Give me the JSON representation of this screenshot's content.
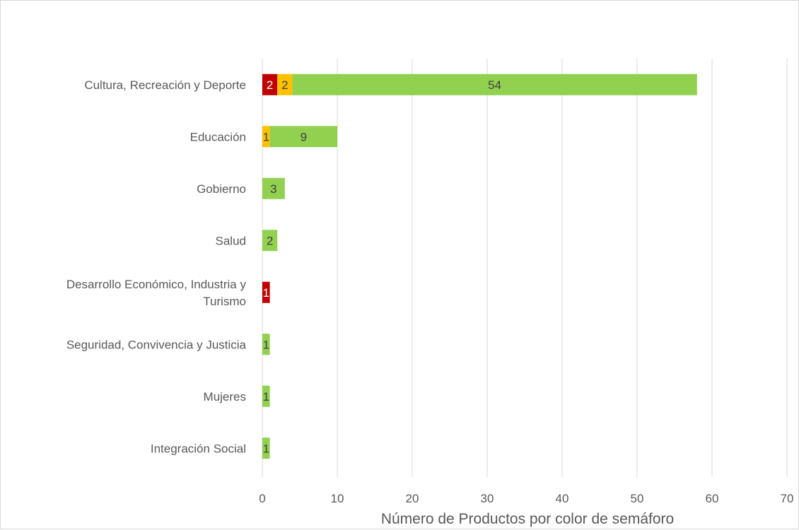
{
  "chart_data": {
    "type": "bar",
    "orientation": "horizontal",
    "stacked": true,
    "categories": [
      "Cultura, Recreación y Deporte",
      "Educación",
      "Gobierno",
      "Salud",
      "Desarrollo Económico, Industria y Turismo",
      "Seguridad, Convivencia y Justicia",
      "Mujeres",
      "Integración Social"
    ],
    "series": [
      {
        "color": "#c00000",
        "label_color": "#ffffff",
        "values": [
          2,
          0,
          0,
          0,
          1,
          0,
          0,
          0
        ]
      },
      {
        "color": "#ffc000",
        "label_color": "#404040",
        "values": [
          2,
          1,
          0,
          0,
          0,
          0,
          0,
          0
        ]
      },
      {
        "color": "#92d050",
        "label_color": "#404040",
        "values": [
          54,
          9,
          3,
          2,
          0,
          1,
          1,
          1
        ]
      }
    ],
    "xlabel": "Número de Productos por color de semáforo",
    "xlim": [
      0,
      70
    ],
    "xticks": [
      0,
      10,
      20,
      30,
      40,
      50,
      60,
      70
    ],
    "grid": "vertical",
    "legend": "none"
  }
}
